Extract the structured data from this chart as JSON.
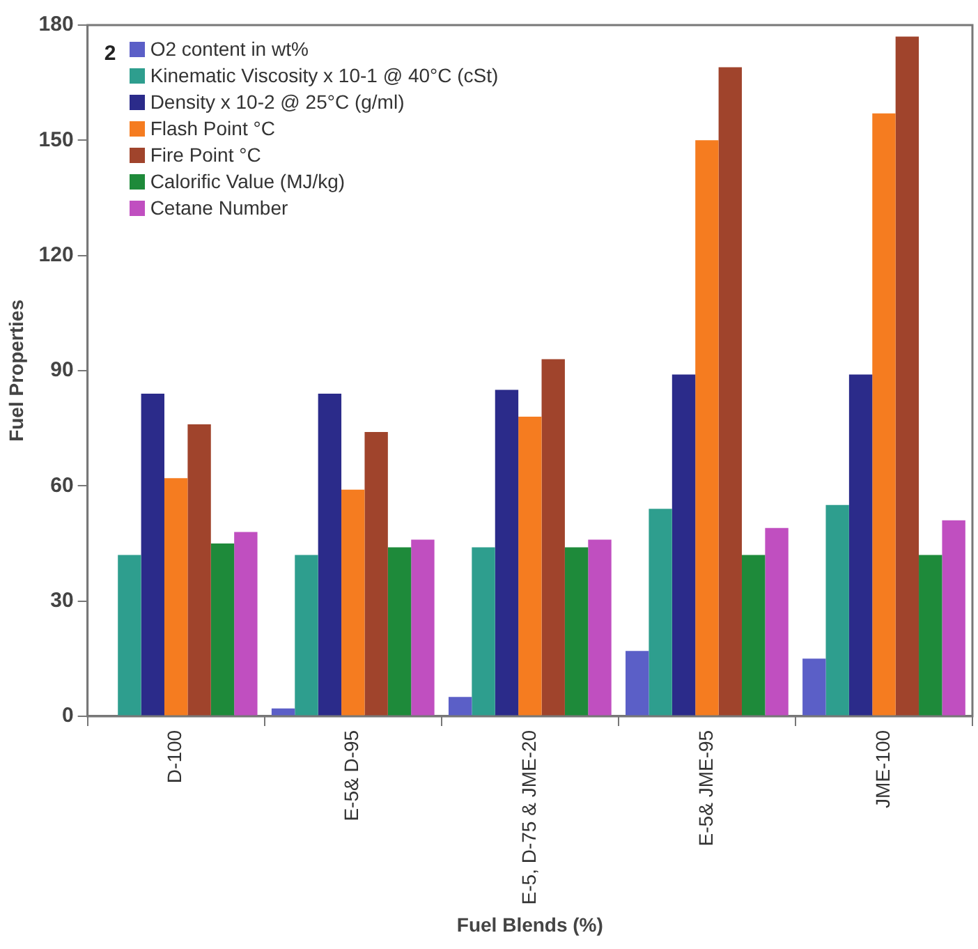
{
  "chart_data": {
    "type": "bar",
    "xlabel": "Fuel Blends (%)",
    "ylabel": "Fuel Properties",
    "annotations": [
      "2"
    ],
    "categories": [
      "D-100",
      "E-5& D-95",
      "E-5, D-75 & JME-20",
      "E-5& JME-95",
      "JME-100"
    ],
    "series": [
      {
        "name": "O2 content in wt%",
        "color": "#5b5fc7",
        "values": [
          0,
          2,
          5,
          17,
          15
        ]
      },
      {
        "name": "Kinematic Viscosity x 10-1 @ 40°C (cSt)",
        "color": "#2e9e8e",
        "values": [
          42,
          42,
          44,
          54,
          55
        ]
      },
      {
        "name": "Density x 10-2 @ 25°C (g/ml)",
        "color": "#2b2b8a",
        "values": [
          84,
          84,
          85,
          89,
          89
        ]
      },
      {
        "name": "Flash Point  °C",
        "color": "#f57c20",
        "values": [
          62,
          59,
          78,
          150,
          157
        ]
      },
      {
        "name": "Fire Point  °C",
        "color": "#a0442c",
        "values": [
          76,
          74,
          93,
          169,
          177
        ]
      },
      {
        "name": "Calorific Value (MJ/kg)",
        "color": "#1e8a3a",
        "values": [
          45,
          44,
          44,
          42,
          42
        ]
      },
      {
        "name": "Cetane Number",
        "color": "#c04fc0",
        "values": [
          48,
          46,
          46,
          49,
          51
        ]
      }
    ],
    "ylim": [
      0,
      180
    ],
    "yticks": [
      0,
      30,
      60,
      90,
      120,
      150,
      180
    ],
    "grid": false,
    "legend": "top left"
  }
}
